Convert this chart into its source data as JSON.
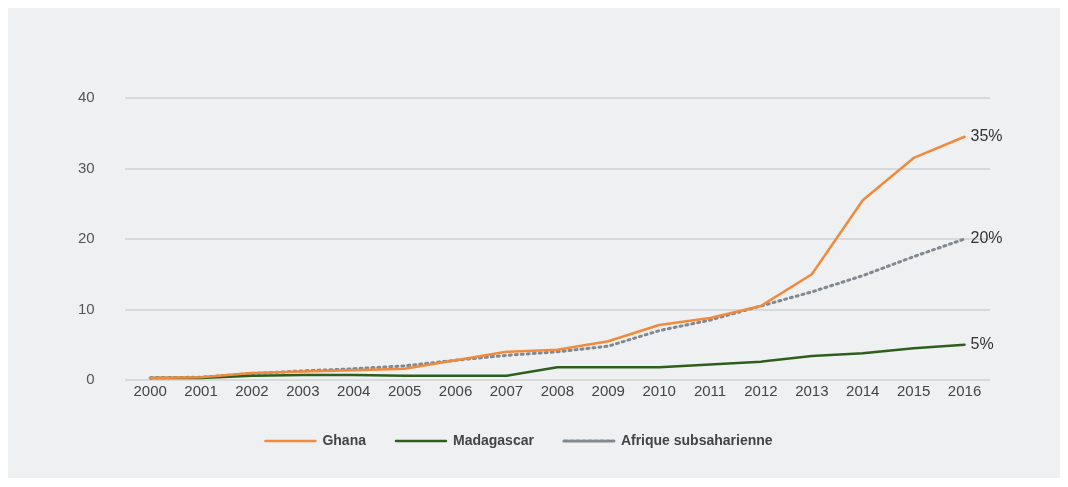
{
  "chart_data": {
    "type": "line",
    "categories": [
      "2000",
      "2001",
      "2002",
      "2003",
      "2004",
      "2005",
      "2006",
      "2007",
      "2008",
      "2009",
      "2010",
      "2011",
      "2012",
      "2013",
      "2014",
      "2015",
      "2016"
    ],
    "series": [
      {
        "name": "Ghana",
        "color": "#f08a3c",
        "values": [
          0.3,
          0.4,
          1,
          1.2,
          1.4,
          1.6,
          2.8,
          4,
          4.3,
          5.5,
          7.8,
          8.8,
          10.5,
          15,
          25.5,
          31.5,
          34.5
        ]
      },
      {
        "name": "Madagascar",
        "color": "#2e5e1e",
        "values": [
          0.3,
          0.3,
          0.6,
          0.7,
          0.7,
          0.6,
          0.6,
          0.6,
          1.8,
          1.8,
          1.8,
          2.2,
          2.6,
          3.4,
          3.8,
          4.5,
          5
        ]
      },
      {
        "name": "Afrique subsaharienne",
        "color": "#808890",
        "line_style": "dotted",
        "values": [
          0.3,
          0.4,
          0.9,
          1.3,
          1.6,
          2,
          2.8,
          3.5,
          4,
          4.8,
          7,
          8.5,
          10.5,
          12.5,
          14.8,
          17.5,
          20
        ]
      }
    ],
    "ylim": [
      0,
      40
    ],
    "yticks": [
      0,
      10,
      20,
      30,
      40
    ],
    "grid": "y",
    "legend": "bottom",
    "marker": "none",
    "line_style": "solid",
    "annotations": [
      {
        "text": "35%",
        "x": "2016",
        "y": 34.5
      },
      {
        "text": "20%",
        "x": "2016",
        "y": 20
      },
      {
        "text": "5%",
        "x": "2016",
        "y": 5
      }
    ]
  }
}
